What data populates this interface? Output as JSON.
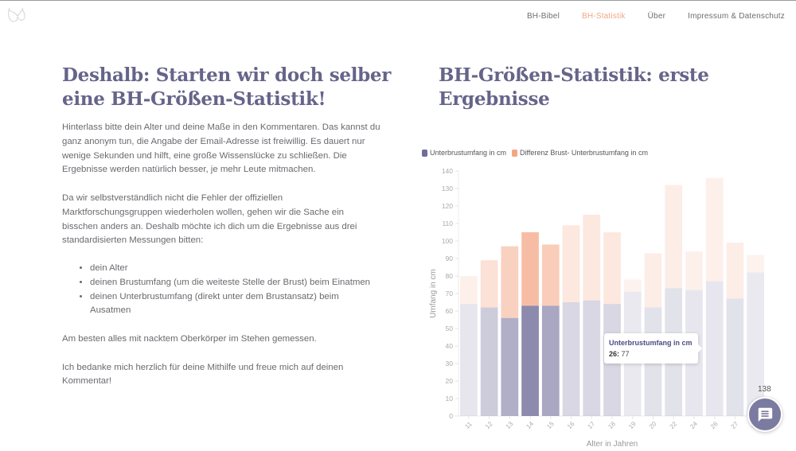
{
  "nav": {
    "items": [
      {
        "label": "BH-Bibel",
        "active": false
      },
      {
        "label": "BH-Statistik",
        "active": true
      },
      {
        "label": "Über",
        "active": false
      },
      {
        "label": "Impressum & Datenschutz",
        "active": false
      }
    ]
  },
  "logo": {
    "icon": "bra-icon"
  },
  "left": {
    "title": "Deshalb: Starten wir doch selber eine BH-Größen-Statistik!",
    "p1": "Hinterlass bitte dein Alter und deine Maße in den Kommentaren. Das kannst du ganz anonym tun, die Angabe der Email-Adresse ist freiwillig. Es dauert nur wenige Sekunden und hilft, eine große Wissenslücke zu schließen. Die Ergebnisse werden natürlich besser, je mehr Leute mitmachen.",
    "p2": "Da wir selbstverständlich nicht die Fehler der offiziellen Marktforschungsgruppen wiederholen wollen, gehen wir die Sache ein bisschen anders an. Deshalb möchte ich dich um die Ergebnisse aus drei standardisierten Messungen bitten:",
    "list": [
      "dein Alter",
      "deinen Brustumfang (um die weiteste Stelle der Brust) beim Einatmen",
      "deinen Unterbrustumfang (direkt unter dem Brustansatz) beim Ausatmen"
    ],
    "p3": "Am besten alles mit nacktem Oberkörper im Stehen gemessen.",
    "p4": "Ich bedanke mich herzlich für deine Mithilfe und freue mich auf deinen Kommentar!"
  },
  "right": {
    "title": "BH-Größen-Statistik: erste Ergebnisse"
  },
  "chart_data": {
    "type": "bar",
    "stacked": true,
    "title": "",
    "xlabel": "Alter in Jahren",
    "ylabel": "Umfang in cm",
    "ylim": [
      0,
      140
    ],
    "yticks": [
      0,
      10,
      20,
      30,
      40,
      50,
      60,
      70,
      80,
      90,
      100,
      110,
      120,
      130,
      140
    ],
    "categories": [
      "11",
      "12",
      "13",
      "14",
      "15",
      "16",
      "17",
      "18",
      "19",
      "20",
      "22",
      "24",
      "26",
      "27",
      "50"
    ],
    "legend_position": "top-left",
    "series": [
      {
        "name": "Unterbrustumfang in cm",
        "color": "#6f6d99",
        "values": [
          64,
          62,
          56,
          63,
          63,
          65,
          66,
          64,
          71,
          62,
          73,
          72,
          77,
          67,
          82
        ]
      },
      {
        "name": "Differenz Brust- Unterbrustumfang in cm",
        "color": "#f4a583",
        "values": [
          16,
          27,
          41,
          42,
          35,
          44,
          49,
          41,
          7,
          31,
          59,
          22,
          59,
          32,
          10
        ]
      }
    ],
    "category_opacity": [
      0.12,
      0.3,
      0.5,
      0.75,
      0.55,
      0.22,
      0.22,
      0.22,
      0.1,
      0.15,
      0.15,
      0.12,
      0.12,
      0.15,
      0.1
    ],
    "tooltip": {
      "series": "Unterbrustumfang in cm",
      "category": "26",
      "value": "77"
    }
  },
  "tooltip": {
    "title": "Unterbrustumfang in cm",
    "key": "26:",
    "value": "77"
  },
  "comments": {
    "count": "138",
    "icon": "comment-icon"
  }
}
